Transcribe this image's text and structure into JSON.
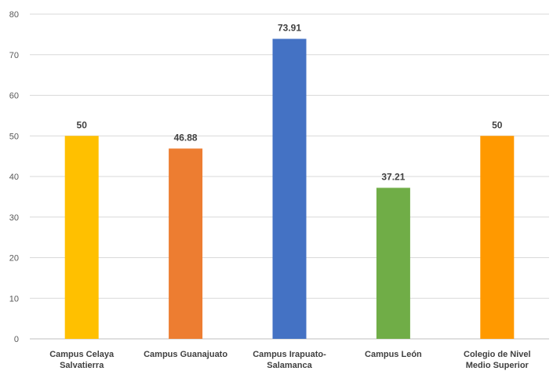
{
  "chart_data": {
    "type": "bar",
    "categories": [
      [
        "Campus Celaya",
        "Salvatierra"
      ],
      [
        "Campus Guanajuato"
      ],
      [
        "Campus Irapuato-",
        "Salamanca"
      ],
      [
        "Campus León"
      ],
      [
        "Colegio de Nivel",
        "Medio Superior"
      ]
    ],
    "values": [
      50,
      46.88,
      73.91,
      37.21,
      50
    ],
    "data_labels": [
      "50",
      "46.88",
      "73.91",
      "37.21",
      "50"
    ],
    "colors": [
      "#FFC000",
      "#ED7D31",
      "#4472C4",
      "#70AD47",
      "#FF9900"
    ],
    "ylim": [
      0,
      80
    ],
    "yticks": [
      0,
      10,
      20,
      30,
      40,
      50,
      60,
      70,
      80
    ],
    "grid": true,
    "legend": "none",
    "title": "",
    "xlabel": "",
    "ylabel": ""
  }
}
